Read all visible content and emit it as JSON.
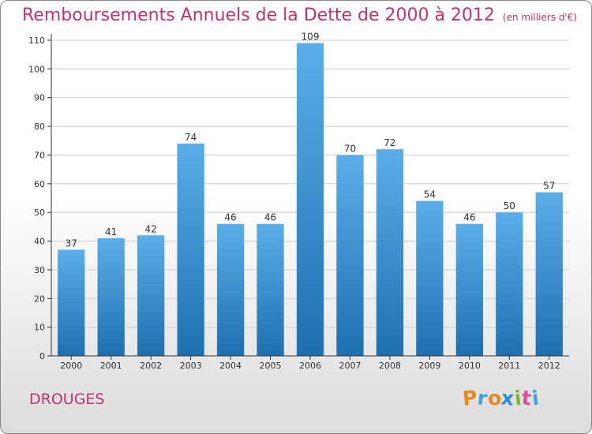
{
  "title": "Remboursements Annuels de la Dette de 2000 à 2012",
  "unit_note": "(en milliers d'€)",
  "place": "DROUGES",
  "brand": {
    "text": "Proxiti",
    "letters": [
      {
        "char": "P",
        "color": "#e8891d"
      },
      {
        "char": "r",
        "color": "#3aa5de"
      },
      {
        "char": "o",
        "color": "#e8891d"
      },
      {
        "char": "x",
        "color": "#2e8fd0"
      },
      {
        "char": "i",
        "color": "#7cb82f"
      },
      {
        "char": "t",
        "color": "#e04e9a"
      },
      {
        "char": "i",
        "color": "#3aa5de"
      }
    ]
  },
  "colors": {
    "accent": "#c0336b",
    "bar_top": "#5aaee9",
    "bar_bottom": "#1f6fb0",
    "grid": "#cccccc",
    "axis": "#333333"
  },
  "chart_data": {
    "type": "bar",
    "categories": [
      "2000",
      "2001",
      "2002",
      "2003",
      "2004",
      "2005",
      "2006",
      "2007",
      "2008",
      "2009",
      "2010",
      "2011",
      "2012"
    ],
    "values": [
      37,
      41,
      42,
      74,
      46,
      46,
      109,
      70,
      72,
      54,
      46,
      50,
      57
    ],
    "title": "Remboursements Annuels de la Dette de 2000 à 2012",
    "subtitle": "(en milliers d'€)",
    "ylim": [
      0,
      110
    ],
    "yticks": [
      0,
      10,
      20,
      30,
      40,
      50,
      60,
      70,
      80,
      90,
      100,
      110
    ],
    "grid": true,
    "data_labels": true
  }
}
